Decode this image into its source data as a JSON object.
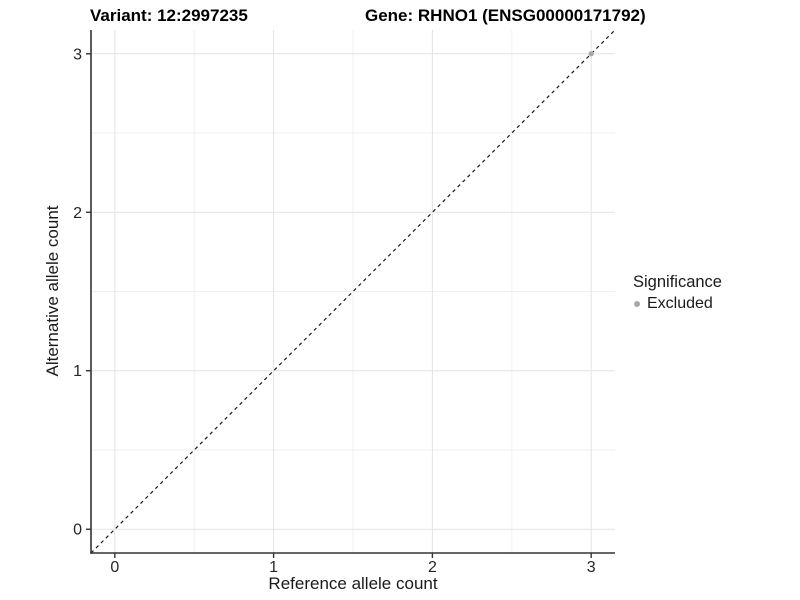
{
  "figure": {
    "title_variant": "Variant: 12:2997235",
    "title_gene": "Gene: RHNO1 (ENSG00000171792)"
  },
  "chart_data": {
    "type": "scatter",
    "title": "Variant: 12:2997235    Gene: RHNO1 (ENSG00000171792)",
    "xlabel": "Reference allele count",
    "ylabel": "Alternative allele count",
    "xlim": [
      -0.15,
      3.15
    ],
    "ylim": [
      -0.15,
      3.15
    ],
    "x_ticks": [
      0,
      1,
      2,
      3
    ],
    "y_ticks": [
      0,
      1,
      2,
      3
    ],
    "minor_ticks": [
      0.5,
      1.5,
      2.5
    ],
    "grid": true,
    "legend_position": "right",
    "identity_line": {
      "style": "dashed",
      "from": [
        -0.15,
        -0.15
      ],
      "to": [
        3.15,
        3.15
      ],
      "color": "#1a1a1a"
    },
    "series": [
      {
        "name": "Excluded",
        "color": "#a8a8a8",
        "points": [
          {
            "x": 3,
            "y": 3
          }
        ]
      }
    ],
    "legend": {
      "title": "Significance",
      "items": [
        {
          "label": "Excluded",
          "color": "#a8a8a8",
          "marker": "circle"
        }
      ]
    },
    "colors": {
      "grid_major": "#e4e4e4",
      "grid_minor": "#f1f1f1",
      "axis_line": "#333333",
      "tick_mark": "#333333",
      "tick_label": "#262626",
      "background": "#ffffff",
      "point": "#a8a8a8"
    }
  }
}
